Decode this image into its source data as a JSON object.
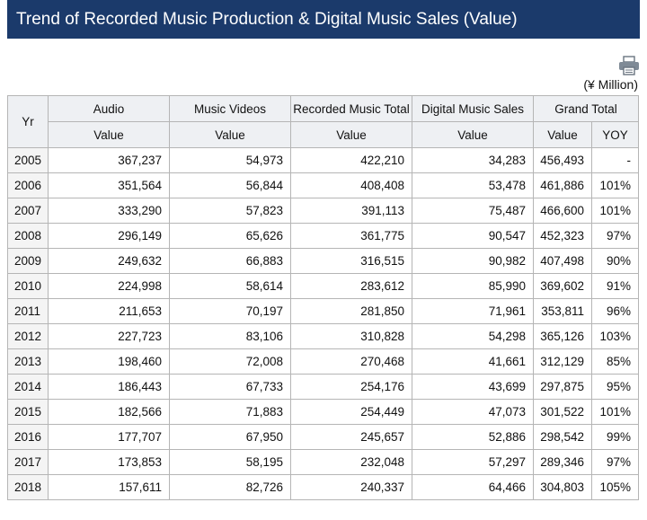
{
  "page": {
    "title": "Trend of Recorded Music Production & Digital Music Sales (Value)",
    "unit": "(¥ Million)",
    "print_icon": "printer-icon"
  },
  "chart_data": {
    "type": "table",
    "title": "Trend of Recorded Music Production & Digital Music Sales (Value)",
    "unit": "(¥ Million)",
    "year_header": "Yr",
    "group_headers": [
      "Audio",
      "Music Videos",
      "Recorded Music Total",
      "Digital Music Sales",
      "Grand Total"
    ],
    "sub_headers": [
      "Value",
      "Value",
      "Value",
      "Value",
      "Value",
      "YOY"
    ],
    "rows": [
      {
        "year": "2005",
        "audio": "367,237",
        "videos": "54,973",
        "recorded": "422,210",
        "digital": "34,283",
        "grand": "456,493",
        "yoy": "-"
      },
      {
        "year": "2006",
        "audio": "351,564",
        "videos": "56,844",
        "recorded": "408,408",
        "digital": "53,478",
        "grand": "461,886",
        "yoy": "101%"
      },
      {
        "year": "2007",
        "audio": "333,290",
        "videos": "57,823",
        "recorded": "391,113",
        "digital": "75,487",
        "grand": "466,600",
        "yoy": "101%"
      },
      {
        "year": "2008",
        "audio": "296,149",
        "videos": "65,626",
        "recorded": "361,775",
        "digital": "90,547",
        "grand": "452,323",
        "yoy": "97%"
      },
      {
        "year": "2009",
        "audio": "249,632",
        "videos": "66,883",
        "recorded": "316,515",
        "digital": "90,982",
        "grand": "407,498",
        "yoy": "90%"
      },
      {
        "year": "2010",
        "audio": "224,998",
        "videos": "58,614",
        "recorded": "283,612",
        "digital": "85,990",
        "grand": "369,602",
        "yoy": "91%"
      },
      {
        "year": "2011",
        "audio": "211,653",
        "videos": "70,197",
        "recorded": "281,850",
        "digital": "71,961",
        "grand": "353,811",
        "yoy": "96%"
      },
      {
        "year": "2012",
        "audio": "227,723",
        "videos": "83,106",
        "recorded": "310,828",
        "digital": "54,298",
        "grand": "365,126",
        "yoy": "103%"
      },
      {
        "year": "2013",
        "audio": "198,460",
        "videos": "72,008",
        "recorded": "270,468",
        "digital": "41,661",
        "grand": "312,129",
        "yoy": "85%"
      },
      {
        "year": "2014",
        "audio": "186,443",
        "videos": "67,733",
        "recorded": "254,176",
        "digital": "43,699",
        "grand": "297,875",
        "yoy": "95%"
      },
      {
        "year": "2015",
        "audio": "182,566",
        "videos": "71,883",
        "recorded": "254,449",
        "digital": "47,073",
        "grand": "301,522",
        "yoy": "101%"
      },
      {
        "year": "2016",
        "audio": "177,707",
        "videos": "67,950",
        "recorded": "245,657",
        "digital": "52,886",
        "grand": "298,542",
        "yoy": "99%"
      },
      {
        "year": "2017",
        "audio": "173,853",
        "videos": "58,195",
        "recorded": "232,048",
        "digital": "57,297",
        "grand": "289,346",
        "yoy": "97%"
      },
      {
        "year": "2018",
        "audio": "157,611",
        "videos": "82,726",
        "recorded": "240,337",
        "digital": "64,466",
        "grand": "304,803",
        "yoy": "105%"
      }
    ]
  }
}
